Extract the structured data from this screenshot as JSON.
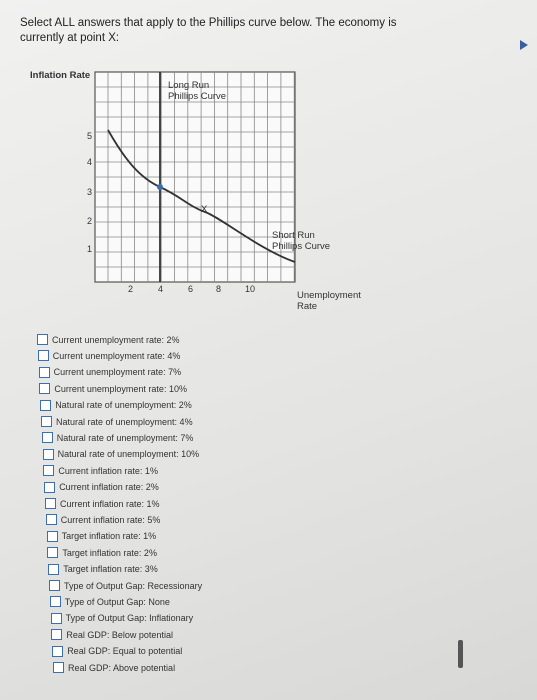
{
  "question": "Select ALL answers that apply to the Phillips curve below. The economy is currently at point X:",
  "figure": {
    "y_axis_label": "Inflation Rate",
    "x_axis_label": "Unemployment Rate",
    "yticks": [
      "5",
      "4",
      "3",
      "2",
      "1"
    ],
    "xticks": [
      "2",
      "4",
      "6",
      "8",
      "10"
    ],
    "lrpc_label": "Long Run Phillips Curve",
    "srpc_label": "Short Run Phillips Curve",
    "point_label": "X"
  },
  "options": [
    "Current unemployment rate: 2%",
    "Current unemployment rate: 4%",
    "Current unemployment rate: 7%",
    "Current unemployment rate: 10%",
    "Natural rate of unemployment: 2%",
    "Natural rate of unemployment: 4%",
    "Natural rate of unemployment: 7%",
    "Natural rate of unemployment: 10%",
    "Current inflation rate: 1%",
    "Current inflation rate: 2%",
    "Current inflation rate: 1%",
    "Current inflation rate: 5%",
    "Target inflation rate: 1%",
    "Target inflation rate: 2%",
    "Target inflation rate: 3%",
    "Type of Output Gap: Recessionary",
    "Type of Output Gap: None",
    "Type of Output Gap: Inflationary",
    "Real GDP: Below potential",
    "Real GDP: Equal to potential",
    "Real GDP: Above potential"
  ]
}
